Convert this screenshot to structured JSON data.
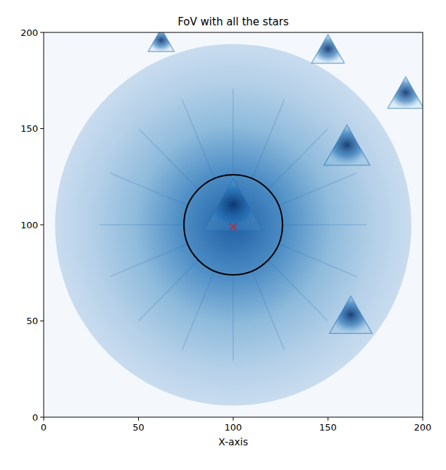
{
  "chart_data": {
    "type": "image",
    "title": "FoV with all the stars",
    "x_label": "X-axis",
    "xlim": [
      0,
      200
    ],
    "ylim": [
      0,
      200
    ],
    "xticks": [
      0,
      50,
      100,
      150,
      200
    ],
    "yticks": [
      0,
      50,
      100,
      150,
      200
    ],
    "grid": false,
    "fov": {
      "x": 100,
      "y": 100,
      "radius": 94
    },
    "aperture": {
      "x": 100,
      "y": 100,
      "radius": 26,
      "color": "#000000"
    },
    "center_marker": {
      "x": 100,
      "y": 99,
      "color": "#e31a1c",
      "marker": "x"
    },
    "sources": [
      {
        "x": 100,
        "y": 106,
        "size": 18
      },
      {
        "x": 160,
        "y": 138,
        "size": 14
      },
      {
        "x": 162,
        "y": 50,
        "size": 13
      },
      {
        "x": 191,
        "y": 166,
        "size": 11
      },
      {
        "x": 150,
        "y": 189,
        "size": 10
      },
      {
        "x": 62,
        "y": 194,
        "size": 8
      }
    ]
  }
}
